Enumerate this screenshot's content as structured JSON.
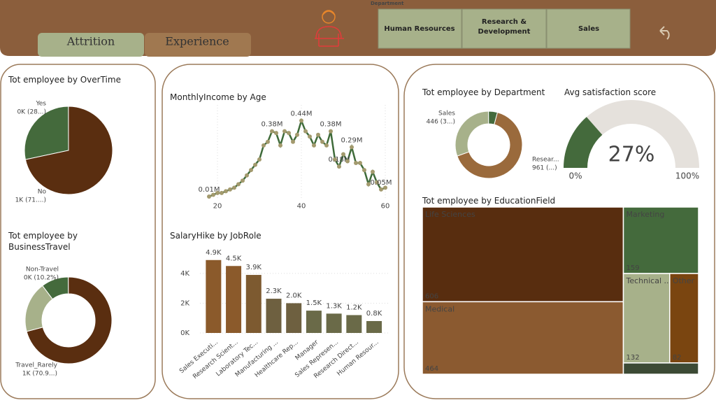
{
  "header": {
    "tabs": [
      "Attrition",
      "Experience"
    ],
    "slicer": {
      "title": "Department",
      "options": [
        "Human Resources",
        "Research & Development",
        "Sales"
      ]
    }
  },
  "chart_data": [
    {
      "type": "pie",
      "title": "Tot employee by OverTime",
      "categories": [
        "Yes",
        "No"
      ],
      "values": [
        416,
        1054
      ],
      "value_labels": [
        "0K (28...)",
        "1K (71....)"
      ],
      "colors": [
        "#446a3c",
        "#5a2e10"
      ]
    },
    {
      "type": "donut",
      "title": "Tot employee by BusinessTravel",
      "categories": [
        "Non-Travel",
        "Travel_Rarely",
        null
      ],
      "values": [
        150,
        1043,
        277
      ],
      "value_labels": [
        "0K (10.2%)",
        "1K (70.9...)",
        null
      ],
      "colors": [
        "#446a3c",
        "#5a2e10",
        "#a7b18a"
      ]
    },
    {
      "type": "line",
      "title": "MonthlyIncome by Age",
      "x": [
        18,
        19,
        20,
        21,
        22,
        23,
        24,
        25,
        26,
        27,
        28,
        29,
        30,
        31,
        32,
        33,
        34,
        35,
        36,
        37,
        38,
        39,
        40,
        41,
        42,
        43,
        44,
        45,
        46,
        47,
        48,
        49,
        50,
        51,
        52,
        53,
        54,
        55,
        56,
        57,
        58,
        59,
        60
      ],
      "values": [
        0.01,
        0.02,
        0.03,
        0.03,
        0.04,
        0.05,
        0.06,
        0.08,
        0.1,
        0.13,
        0.16,
        0.19,
        0.22,
        0.3,
        0.32,
        0.38,
        0.37,
        0.3,
        0.38,
        0.37,
        0.32,
        0.36,
        0.44,
        0.38,
        0.35,
        0.3,
        0.36,
        0.32,
        0.3,
        0.38,
        0.22,
        0.18,
        0.25,
        0.21,
        0.29,
        0.2,
        0.2,
        0.16,
        0.08,
        0.15,
        0.09,
        0.05,
        0.06
      ],
      "value_labels": [
        "0.01M",
        null,
        null,
        null,
        null,
        null,
        null,
        null,
        null,
        null,
        null,
        null,
        null,
        null,
        null,
        "0.38M",
        null,
        null,
        null,
        null,
        null,
        null,
        "0.44M",
        null,
        null,
        null,
        null,
        null,
        null,
        "0.38M",
        null,
        "0.18M",
        null,
        null,
        "0.29M",
        null,
        null,
        null,
        null,
        null,
        null,
        "0.05M",
        null
      ],
      "xlim": [
        18,
        60
      ],
      "xticks": [
        20,
        40,
        60
      ],
      "ylim": [
        0,
        0.45
      ],
      "color": "#3f6b3a",
      "marker_color": "#a39a6e"
    },
    {
      "type": "bar",
      "title": "SalaryHike by JobRole",
      "categories": [
        "Sales Executi...",
        "Research Scient...",
        "Laboratory Tec...",
        "Manufacturing ...",
        "Healthcare Rep...",
        "Manager",
        "Sales Represen...",
        "Research Direct...",
        "Human Resour..."
      ],
      "values": [
        4900,
        4500,
        3900,
        2300,
        2000,
        1500,
        1300,
        1200,
        800
      ],
      "value_labels": [
        "4.9K",
        "4.5K",
        "3.9K",
        "2.3K",
        "2.0K",
        "1.5K",
        "1.3K",
        "1.2K",
        "0.8K"
      ],
      "colors": [
        "#8b5a2b",
        "#8b5a2b",
        "#7d5a30",
        "#6e6040",
        "#6e6040",
        "#6a6a48",
        "#6a6a48",
        "#6a6a48",
        "#6a6a48"
      ],
      "ylim": [
        0,
        5500
      ],
      "yticks": [
        {
          "value": 0,
          "label": "0K"
        },
        {
          "value": 2000,
          "label": "2K"
        },
        {
          "value": 4000,
          "label": "4K"
        }
      ],
      "grid": true
    },
    {
      "type": "donut",
      "title": "Tot employee by Department",
      "categories": [
        "Resear...",
        "Sales",
        null
      ],
      "values": [
        961,
        446,
        63
      ],
      "value_labels": [
        "961 (...)",
        "446 (3...)",
        null
      ],
      "colors": [
        "#9a6a3c",
        "#a7b18a",
        "#446a3c"
      ]
    },
    {
      "type": "gauge",
      "title": "Avg satisfaction score",
      "values": [
        27
      ],
      "value_labels": [
        "27%"
      ],
      "ylim": [
        0,
        100
      ],
      "yticks": [
        {
          "value": 0,
          "label": "0%"
        },
        {
          "value": 100,
          "label": "100%"
        }
      ],
      "color": "#446a3c"
    },
    {
      "type": "treemap",
      "title": "Tot employee by EducationField",
      "categories": [
        "Life Sciences",
        "Medical",
        "Marketing",
        "Technical ...",
        "Other",
        null
      ],
      "values": [
        606,
        464,
        159,
        132,
        82,
        27
      ],
      "colors": [
        "#582d0f",
        "#8b5a30",
        "#446a3c",
        "#a7b18a",
        "#7a4510",
        "#3c4a35"
      ]
    }
  ]
}
